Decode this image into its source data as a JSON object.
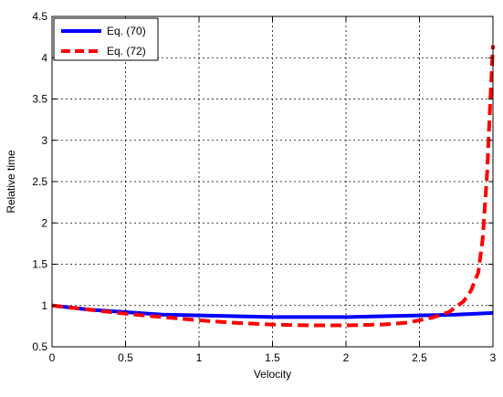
{
  "chart_data": {
    "type": "line",
    "xlabel": "Velocity",
    "ylabel": "Relative time",
    "xlim": [
      0,
      3
    ],
    "ylim": [
      0.5,
      4.5
    ],
    "xticks": [
      0,
      0.5,
      1,
      1.5,
      2,
      2.5,
      3
    ],
    "xtick_labels": [
      "0",
      "0.5",
      "1",
      "1.5",
      "2",
      "2.5",
      "3"
    ],
    "yticks": [
      0.5,
      1,
      1.5,
      2,
      2.5,
      3,
      3.5,
      4,
      4.5
    ],
    "ytick_labels": [
      "0.5",
      "1",
      "1.5",
      "2",
      "2.5",
      "3",
      "3.5",
      "4",
      "4.5"
    ],
    "grid": true,
    "legend_position": "top-left",
    "series": [
      {
        "name": "Eq. (70)",
        "color": "#0000ff",
        "style": "solid",
        "x": [
          0,
          0.25,
          0.5,
          0.75,
          1.0,
          1.25,
          1.5,
          1.75,
          2.0,
          2.25,
          2.5,
          2.75,
          3.0
        ],
        "y": [
          1.0,
          0.95,
          0.92,
          0.89,
          0.88,
          0.87,
          0.86,
          0.86,
          0.86,
          0.87,
          0.88,
          0.89,
          0.91
        ]
      },
      {
        "name": "Eq. (72)",
        "color": "#ff0000",
        "style": "dashed",
        "x": [
          0,
          0.25,
          0.5,
          0.75,
          1.0,
          1.25,
          1.5,
          1.75,
          2.0,
          2.25,
          2.4,
          2.5,
          2.6,
          2.7,
          2.8,
          2.85,
          2.9,
          2.93,
          2.96,
          2.98,
          3.0
        ],
        "y": [
          1.0,
          0.95,
          0.9,
          0.86,
          0.82,
          0.79,
          0.77,
          0.76,
          0.76,
          0.77,
          0.79,
          0.82,
          0.86,
          0.92,
          1.05,
          1.18,
          1.4,
          1.8,
          2.6,
          3.4,
          4.15
        ]
      }
    ]
  }
}
